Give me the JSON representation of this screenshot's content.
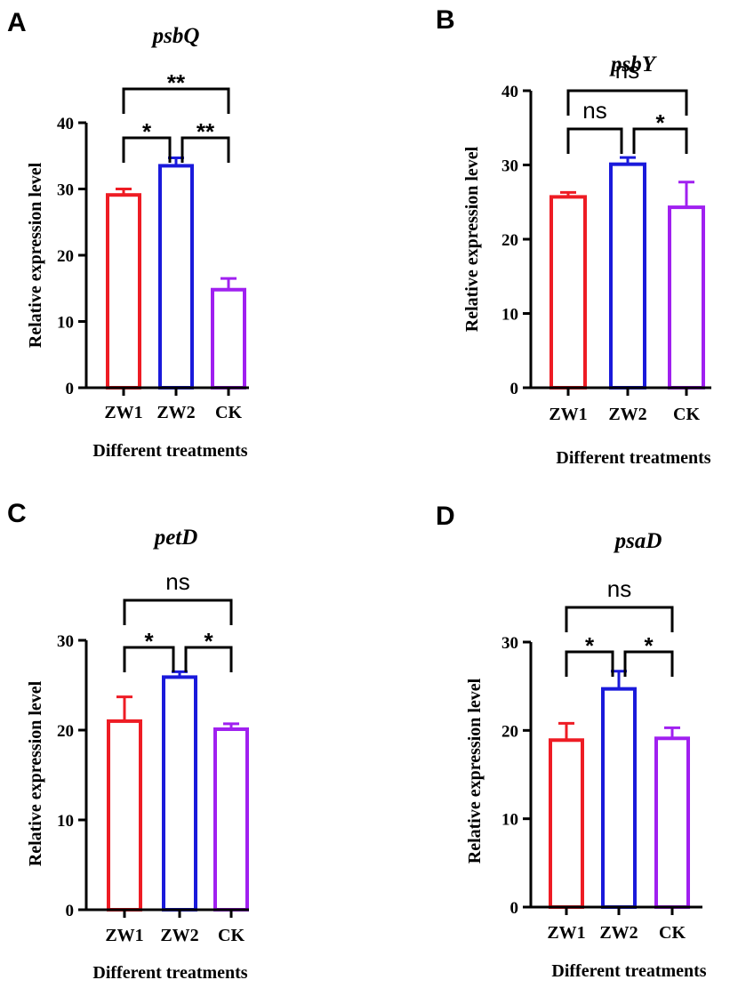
{
  "figure": {
    "colors": {
      "ZW1": "#ee1c24",
      "ZW2": "#1a1adb",
      "CK": "#a020f0",
      "axis": "#000000",
      "bracket": "#000000"
    }
  },
  "chart_data": [
    {
      "panel": "A",
      "type": "bar",
      "title": "psbQ",
      "xlabel": "Different treatments",
      "ylabel": "Relative expression level",
      "categories": [
        "ZW1",
        "ZW2",
        "CK"
      ],
      "values": [
        29.1,
        33.5,
        14.8
      ],
      "errors": [
        0.9,
        1.2,
        1.7
      ],
      "ylim": [
        0,
        40
      ],
      "yticks": [
        0,
        10,
        20,
        30,
        40
      ],
      "ytick_labels": [
        "0",
        "10",
        "20",
        "30",
        "40"
      ],
      "comparisons": [
        {
          "pair": "ZW1-ZW2",
          "label": "*"
        },
        {
          "pair": "ZW2-CK",
          "label": "**"
        },
        {
          "pair": "ZW1-CK",
          "label": "**"
        }
      ]
    },
    {
      "panel": "B",
      "type": "bar",
      "title": "psbY",
      "xlabel": "Different treatments",
      "ylabel": "Relative expression level",
      "categories": [
        "ZW1",
        "ZW2",
        "CK"
      ],
      "values": [
        25.7,
        30.1,
        24.3
      ],
      "errors": [
        0.6,
        0.9,
        3.4
      ],
      "ylim": [
        0,
        40
      ],
      "yticks": [
        0,
        10,
        20,
        30,
        40
      ],
      "ytick_labels": [
        "0",
        "10",
        "20",
        "30",
        "40"
      ],
      "comparisons": [
        {
          "pair": "ZW1-ZW2",
          "label": "ns"
        },
        {
          "pair": "ZW2-CK",
          "label": "*"
        },
        {
          "pair": "ZW1-CK",
          "label": "ns"
        }
      ]
    },
    {
      "panel": "C",
      "type": "bar",
      "title": "petD",
      "xlabel": "Different treatments",
      "ylabel": "Relative expression level",
      "categories": [
        "ZW1",
        "ZW2",
        "CK"
      ],
      "values": [
        21.0,
        25.9,
        20.1
      ],
      "errors": [
        2.7,
        0.6,
        0.6
      ],
      "ylim": [
        0,
        30
      ],
      "yticks": [
        0,
        10,
        20,
        30
      ],
      "ytick_labels": [
        "0",
        "10",
        "20",
        "30"
      ],
      "comparisons": [
        {
          "pair": "ZW1-ZW2",
          "label": "*"
        },
        {
          "pair": "ZW2-CK",
          "label": "*"
        },
        {
          "pair": "ZW1-CK",
          "label": "ns"
        }
      ]
    },
    {
      "panel": "D",
      "type": "bar",
      "title": "psaD",
      "xlabel": "Different treatments",
      "ylabel": "Relative expression level",
      "categories": [
        "ZW1",
        "ZW2",
        "CK"
      ],
      "values": [
        18.9,
        24.7,
        19.1
      ],
      "errors": [
        1.9,
        2.0,
        1.2
      ],
      "ylim": [
        0,
        30
      ],
      "yticks": [
        0,
        10,
        20,
        30
      ],
      "ytick_labels": [
        "0",
        "10",
        "20",
        "30"
      ],
      "comparisons": [
        {
          "pair": "ZW1-ZW2",
          "label": "*"
        },
        {
          "pair": "ZW2-CK",
          "label": "*"
        },
        {
          "pair": "ZW1-CK",
          "label": "ns"
        }
      ]
    }
  ]
}
